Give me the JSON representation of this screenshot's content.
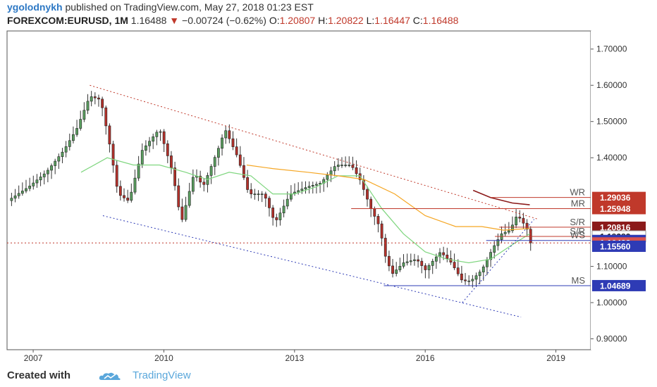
{
  "header": {
    "author": "ygolodnykh",
    "published_text": "published on TradingView.com, May 27, 2018 01:23 EST",
    "symbol": "FOREXCOM:EURUSD, 1M",
    "last": "1.16488",
    "change": "−0.00724 (−0.62%)",
    "o_label": "O:",
    "o_value": "1.20807",
    "h_label": "H:",
    "h_value": "1.20822",
    "l_label": "L:",
    "l_value": "1.16447",
    "c_label": "C:",
    "c_value": "1.16488"
  },
  "footer": {
    "created_with": "Created with",
    "brand": "TradingView"
  },
  "colors": {
    "up": "#5a9e5f",
    "down": "#b5312b",
    "resistance": "#c0392b",
    "support": "#2e3bb5",
    "ma_fast": "#7fd67f",
    "ma_slow": "#f5a623",
    "ma_long": "#8b1a1a"
  },
  "chart_data": {
    "type": "candlestick",
    "x_range": [
      2006.4,
      2019.8
    ],
    "ylim": [
      0.87,
      1.75
    ],
    "x_ticks": [
      {
        "x": 2007,
        "label": "2007"
      },
      {
        "x": 2010,
        "label": "2010"
      },
      {
        "x": 2013,
        "label": "2013"
      },
      {
        "x": 2016,
        "label": "2016"
      },
      {
        "x": 2019,
        "label": "2019"
      }
    ],
    "y_ticks": [
      {
        "v": 0.9,
        "label": "0.90000"
      },
      {
        "v": 1.0,
        "label": "1.00000"
      },
      {
        "v": 1.1,
        "label": "1.10000"
      },
      {
        "v": 1.4,
        "label": "1.40000"
      },
      {
        "v": 1.5,
        "label": "1.50000"
      },
      {
        "v": 1.6,
        "label": "1.60000"
      },
      {
        "v": 1.7,
        "label": "1.70000"
      }
    ],
    "anchors": [
      [
        2006.4,
        1.28
      ],
      [
        2006.9,
        1.32
      ],
      [
        2007.3,
        1.36
      ],
      [
        2007.7,
        1.42
      ],
      [
        2008.0,
        1.48
      ],
      [
        2008.3,
        1.57
      ],
      [
        2008.55,
        1.56
      ],
      [
        2008.75,
        1.44
      ],
      [
        2008.95,
        1.3
      ],
      [
        2009.2,
        1.28
      ],
      [
        2009.5,
        1.42
      ],
      [
        2009.9,
        1.48
      ],
      [
        2010.2,
        1.36
      ],
      [
        2010.4,
        1.22
      ],
      [
        2010.7,
        1.36
      ],
      [
        2010.9,
        1.32
      ],
      [
        2011.3,
        1.44
      ],
      [
        2011.4,
        1.48
      ],
      [
        2011.7,
        1.4
      ],
      [
        2011.95,
        1.3
      ],
      [
        2012.3,
        1.3
      ],
      [
        2012.55,
        1.22
      ],
      [
        2012.9,
        1.3
      ],
      [
        2013.3,
        1.32
      ],
      [
        2013.6,
        1.33
      ],
      [
        2013.95,
        1.38
      ],
      [
        2014.3,
        1.38
      ],
      [
        2014.5,
        1.34
      ],
      [
        2014.75,
        1.26
      ],
      [
        2014.95,
        1.21
      ],
      [
        2015.1,
        1.12
      ],
      [
        2015.25,
        1.08
      ],
      [
        2015.5,
        1.11
      ],
      [
        2015.8,
        1.12
      ],
      [
        2016.0,
        1.09
      ],
      [
        2016.35,
        1.14
      ],
      [
        2016.6,
        1.11
      ],
      [
        2016.85,
        1.06
      ],
      [
        2017.05,
        1.06
      ],
      [
        2017.3,
        1.09
      ],
      [
        2017.55,
        1.15
      ],
      [
        2017.75,
        1.19
      ],
      [
        2017.95,
        1.2
      ],
      [
        2018.1,
        1.24
      ],
      [
        2018.2,
        1.23
      ],
      [
        2018.35,
        1.2
      ],
      [
        2018.42,
        1.165
      ]
    ],
    "moving_averages": [
      {
        "points": [
          [
            2008.1,
            1.36
          ],
          [
            2008.7,
            1.4
          ],
          [
            2009.3,
            1.38
          ],
          [
            2009.9,
            1.38
          ],
          [
            2010.5,
            1.36
          ],
          [
            2011.0,
            1.34
          ],
          [
            2011.5,
            1.36
          ],
          [
            2012.0,
            1.35
          ],
          [
            2012.5,
            1.3
          ],
          [
            2013.0,
            1.3
          ],
          [
            2013.5,
            1.32
          ],
          [
            2014.0,
            1.35
          ],
          [
            2014.5,
            1.35
          ],
          [
            2015.0,
            1.26
          ],
          [
            2015.5,
            1.19
          ],
          [
            2016.0,
            1.14
          ],
          [
            2016.5,
            1.12
          ],
          [
            2017.0,
            1.11
          ],
          [
            2017.5,
            1.12
          ],
          [
            2018.0,
            1.16
          ],
          [
            2018.4,
            1.19
          ]
        ]
      },
      {
        "points": [
          [
            2011.9,
            1.38
          ],
          [
            2012.5,
            1.37
          ],
          [
            2013.3,
            1.36
          ],
          [
            2014.0,
            1.35
          ],
          [
            2014.6,
            1.34
          ],
          [
            2015.3,
            1.3
          ],
          [
            2016.0,
            1.24
          ],
          [
            2016.7,
            1.21
          ],
          [
            2017.3,
            1.21
          ],
          [
            2017.8,
            1.2
          ],
          [
            2018.4,
            1.205
          ]
        ]
      },
      {
        "points": [
          [
            2017.1,
            1.31
          ],
          [
            2017.5,
            1.29
          ],
          [
            2018.0,
            1.275
          ],
          [
            2018.4,
            1.27
          ]
        ]
      }
    ],
    "trend_lines": [
      {
        "style": "resistance-dotted",
        "from": [
          2008.3,
          1.6
        ],
        "to": [
          2018.6,
          1.23
        ]
      },
      {
        "style": "support-dotted",
        "from": [
          2008.6,
          1.24
        ],
        "to": [
          2018.2,
          0.96
        ]
      },
      {
        "style": "support-dotted",
        "from": [
          2016.85,
          1.0
        ],
        "to": [
          2018.5,
          1.23
        ]
      }
    ],
    "levels": [
      {
        "label": "WR",
        "value": 1.29036,
        "x_start": 2017.5,
        "style": "resistance"
      },
      {
        "label": "MR",
        "value": 1.25948,
        "x_start": 2014.3,
        "style": "resistance"
      },
      {
        "label": "S/R",
        "value": 1.20816,
        "x_start": 2017.7,
        "style": "resistance"
      },
      {
        "label": "S/R",
        "value": 1.18283,
        "x_start": 2017.6,
        "style": "resistance"
      },
      {
        "label": "WS",
        "value": 1.1716,
        "x_start": 2017.4,
        "style": "support"
      },
      {
        "label": "MS",
        "value": 1.04689,
        "x_start": 2015.05,
        "style": "support"
      }
    ],
    "current_price": 1.16488,
    "price_badges": [
      {
        "value": 1.29036,
        "label": "1.29036",
        "bg": "#c0392b"
      },
      {
        "value": 1.25948,
        "label": "1.25948",
        "bg": "#c0392b"
      },
      {
        "value": 1.20816,
        "label": "1.20816",
        "bg": "#8b1a1a"
      },
      {
        "value": 1.18283,
        "label": "1.18283",
        "bg": "#ffffff",
        "fg": "#222222"
      },
      {
        "value": 1.1716,
        "label": "1.17160",
        "bg": "#2e3bb5"
      },
      {
        "value": 1.16488,
        "label": "1.16488",
        "bg": "#d9534f"
      },
      {
        "value": 1.1556,
        "label": "1.15560",
        "bg": "#2e3bb5"
      },
      {
        "value": 1.04689,
        "label": "1.04689",
        "bg": "#2e3bb5"
      }
    ]
  }
}
